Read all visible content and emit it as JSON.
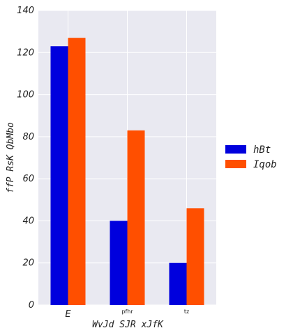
{
  "chart_data": {
    "type": "bar",
    "categories": [
      "E",
      "pfhr",
      "tz"
    ],
    "series": [
      {
        "name": "hBt",
        "color": "#0000dd",
        "values": [
          123,
          40,
          20
        ]
      },
      {
        "name": "Iqob",
        "color": "#ff4f00",
        "values": [
          127,
          83,
          46
        ]
      }
    ],
    "xlabel": "WvJd SJR  xJfK",
    "ylabel": "ffP RsK QbMbo",
    "ylim": [
      0,
      140
    ],
    "yticks": [
      0,
      20,
      40,
      60,
      80,
      100,
      120,
      140
    ],
    "grid": true,
    "background": "#e9e9f1",
    "legend_position": "right"
  }
}
